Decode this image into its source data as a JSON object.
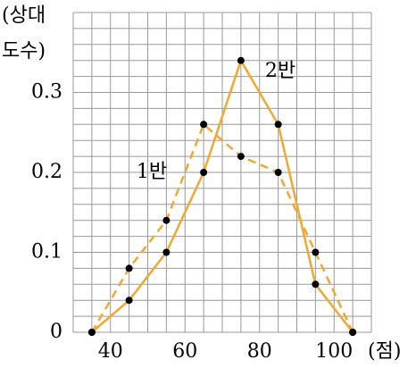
{
  "chart_data": {
    "type": "line",
    "y_label": [
      "(상대",
      "도수)"
    ],
    "x_unit": "(점)",
    "x": [
      35,
      45,
      55,
      65,
      75,
      85,
      95,
      105
    ],
    "series": [
      {
        "name": "1반",
        "color": "#f0a830",
        "dashed": true,
        "values": [
          0,
          0.08,
          0.14,
          0.26,
          0.22,
          0.2,
          0.1,
          0
        ]
      },
      {
        "name": "2반",
        "color": "#f0a830",
        "dashed": false,
        "values": [
          0,
          0.04,
          0.1,
          0.2,
          0.34,
          0.26,
          0.06,
          0
        ]
      }
    ],
    "xlim": [
      30,
      110
    ],
    "ylim": [
      0,
      0.4
    ],
    "xticks": [
      40,
      60,
      80,
      100
    ],
    "yticks": [
      0,
      0.1,
      0.2,
      0.3
    ],
    "xgrid": [
      30,
      35,
      40,
      45,
      50,
      55,
      60,
      65,
      70,
      75,
      80,
      85,
      90,
      95,
      100,
      105,
      110
    ],
    "ygrid": [
      0,
      0.02,
      0.04,
      0.06,
      0.08,
      0.1,
      0.12,
      0.14,
      0.16,
      0.18,
      0.2,
      0.22,
      0.24,
      0.26,
      0.28,
      0.3,
      0.32,
      0.34,
      0.36,
      0.38,
      0.4
    ],
    "grid": true,
    "marker_color": "#000000"
  }
}
